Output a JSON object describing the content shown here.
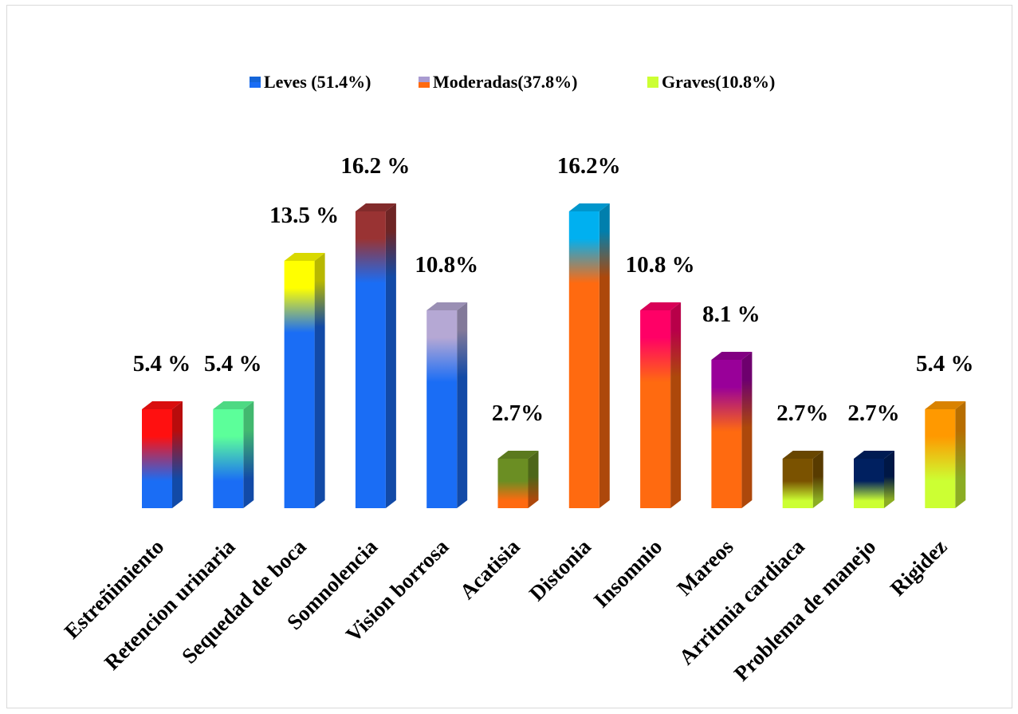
{
  "chart_data": {
    "type": "bar",
    "title": "",
    "xlabel": "",
    "ylabel": "",
    "ylim": [
      0,
      16.2
    ],
    "grid": false,
    "legend_position": "top",
    "legend": [
      {
        "label": "Leves (51.4%)",
        "colors": [
          "#1565d8",
          "#1a6df5"
        ]
      },
      {
        "label": "Moderadas(37.8%)",
        "colors": [
          "#a99bd1",
          "#ff6a10"
        ]
      },
      {
        "label": "Graves(10.8%)",
        "colors": [
          "#ccff33",
          "#ccff33"
        ]
      }
    ],
    "categories": [
      "Estreñimiento",
      "Retencion urinaria",
      "Sequedad de boca",
      "Somnolencia",
      "Vision borrosa",
      "Acatisia",
      "Distonia",
      "Insomnio",
      "Mareos",
      "Arritmia cardiaca",
      "Problema de manejo",
      "Rigidez"
    ],
    "values": [
      5.4,
      5.4,
      13.5,
      16.2,
      10.8,
      2.7,
      16.2,
      10.8,
      8.1,
      2.7,
      2.7,
      5.4
    ],
    "value_labels": [
      "5.4 %",
      "5.4 %",
      "13.5 %",
      "16.2 %",
      "10.8%",
      "2.7%",
      "16.2%",
      "10.8 %",
      "8.1 %",
      "2.7%",
      "2.7%",
      "5.4 %"
    ],
    "severity_group": [
      "leves",
      "leves",
      "leves",
      "leves",
      "leves",
      "moderadas",
      "moderadas",
      "moderadas",
      "moderadas",
      "graves",
      "graves",
      "graves"
    ],
    "group_colors": {
      "leves": "#1a6df5",
      "moderadas": "#ff6a10",
      "graves": "#ccff33"
    },
    "top_colors": [
      "#ff1010",
      "#5cff9a",
      "#ffff00",
      "#993333",
      "#b5a8d4",
      "#6b8e23",
      "#00b0f0",
      "#ff0066",
      "#990099",
      "#7a5200",
      "#002060",
      "#ff9900"
    ]
  }
}
